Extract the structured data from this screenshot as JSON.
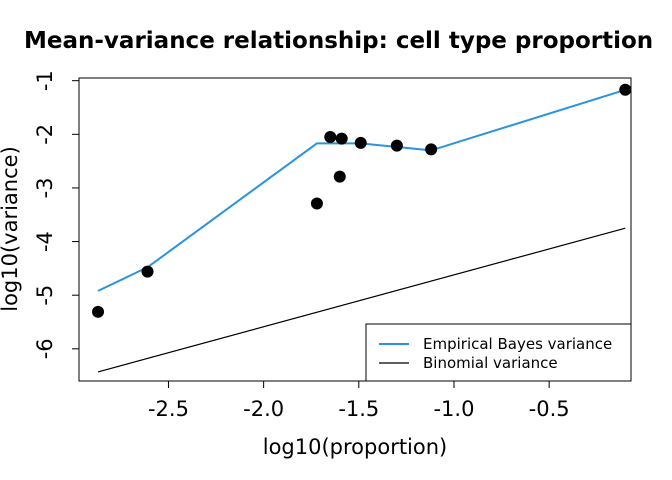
{
  "chart_data": {
    "type": "scatter",
    "title": "Mean-variance relationship: cell type proportion",
    "xlabel": "log10(proportion)",
    "ylabel": "log10(variance)",
    "xlim": [
      -2.97,
      -0.07
    ],
    "ylim": [
      -6.6,
      -0.95
    ],
    "xticks": [
      -2.5,
      -2.0,
      -1.5,
      -1.0,
      -0.5
    ],
    "xtick_labels": [
      "-2.5",
      "-2.0",
      "-1.5",
      "-1.0",
      "-0.5"
    ],
    "yticks": [
      -1,
      -2,
      -3,
      -4,
      -5,
      -6
    ],
    "ytick_labels": [
      "-1",
      "-2",
      "-3",
      "-4",
      "-5",
      "-6"
    ],
    "points": {
      "x": [
        -2.87,
        -2.61,
        -1.72,
        -1.65,
        -1.59,
        -1.6,
        -1.49,
        -1.3,
        -1.12,
        -0.1
      ],
      "y": [
        -5.31,
        -4.56,
        -3.29,
        -2.05,
        -2.08,
        -2.79,
        -2.16,
        -2.21,
        -2.28,
        -1.17
      ],
      "color": "#000000"
    },
    "series": [
      {
        "name": "Empirical Bayes variance",
        "color": "#2a93e0",
        "x": [
          -2.87,
          -2.61,
          -1.72,
          -1.49,
          -1.12,
          -0.1
        ],
        "y": [
          -4.92,
          -4.48,
          -2.17,
          -2.17,
          -2.3,
          -1.17
        ]
      },
      {
        "name": "Binomial variance",
        "color": "#000000",
        "x": [
          -2.87,
          -0.1
        ],
        "y": [
          -6.43,
          -3.75
        ]
      }
    ],
    "legend": {
      "position": "bottom-right",
      "entries": [
        "Empirical Bayes variance",
        "Binomial variance"
      ]
    },
    "grid": false
  }
}
